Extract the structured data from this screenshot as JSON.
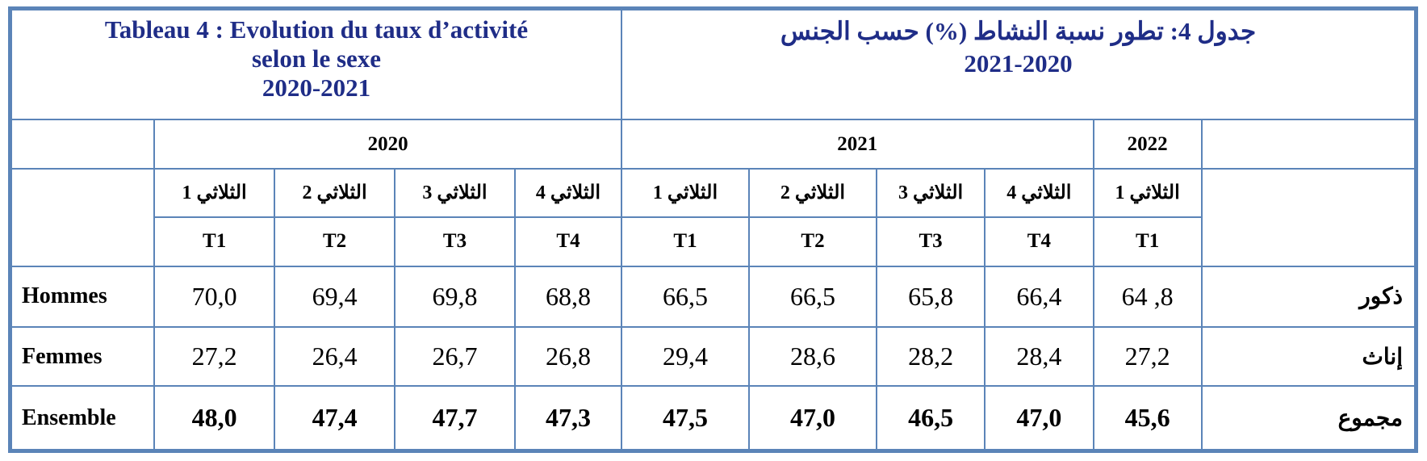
{
  "title_fr": {
    "line1": "Tableau 4 : Evolution du taux d’activité",
    "line2": "selon le sexe",
    "line3": "2020-2021"
  },
  "title_ar": {
    "line1": "جدول 4: تطور نسبة النشاط (%) حسب الجنس",
    "line2": "2021-2020"
  },
  "years": [
    "2020",
    "2021",
    "2022"
  ],
  "quarters_ar": [
    "الثلاثي 1",
    "الثلاثي 2",
    "الثلاثي 3",
    "الثلاثي 4",
    "الثلاثي 1",
    "الثلاثي 2",
    "الثلاثي 3",
    "الثلاثي 4",
    "الثلاثي 1"
  ],
  "quarters_fr": [
    "T1",
    "T2",
    "T3",
    "T4",
    "T1",
    "T2",
    "T3",
    "T4",
    "T1"
  ],
  "rows": [
    {
      "label_fr": "Hommes",
      "label_ar": "ذكور",
      "values": [
        "70,0",
        "69,4",
        "69,8",
        "68,8",
        "66,5",
        "66,5",
        "65,8",
        "66,4",
        "64 ,8"
      ]
    },
    {
      "label_fr": "Femmes",
      "label_ar": "إناث",
      "values": [
        "27,2",
        "26,4",
        "26,7",
        "26,8",
        "29,4",
        "28,6",
        "28,2",
        "28,4",
        "27,2"
      ]
    },
    {
      "label_fr": "Ensemble",
      "label_ar": "مجموع",
      "values": [
        "48,0",
        "47,4",
        "47,7",
        "47,3",
        "47,5",
        "47,0",
        "46,5",
        "47,0",
        "45,6"
      ]
    }
  ],
  "colors": {
    "border": "#5b84b8",
    "title": "#1f2d87"
  }
}
